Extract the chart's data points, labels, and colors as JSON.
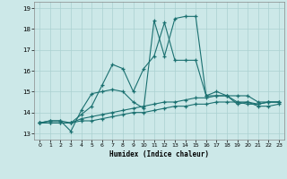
{
  "xlabel": "Humidex (Indice chaleur)",
  "xlim": [
    -0.5,
    23.5
  ],
  "ylim": [
    12.7,
    19.3
  ],
  "yticks": [
    13,
    14,
    15,
    16,
    17,
    18,
    19
  ],
  "xticks": [
    0,
    1,
    2,
    3,
    4,
    5,
    6,
    7,
    8,
    9,
    10,
    11,
    12,
    13,
    14,
    15,
    16,
    17,
    18,
    19,
    20,
    21,
    22,
    23
  ],
  "bg_color": "#cce8e8",
  "grid_color": "#aad0d0",
  "line_color": "#1a7070",
  "lines": [
    [
      13.5,
      13.6,
      13.6,
      13.1,
      14.1,
      14.9,
      15.0,
      15.1,
      15.0,
      14.5,
      14.2,
      18.4,
      16.7,
      18.5,
      18.6,
      18.6,
      14.8,
      15.0,
      14.8,
      14.4,
      14.5,
      14.4,
      14.5,
      14.5
    ],
    [
      13.5,
      13.6,
      13.6,
      13.5,
      13.9,
      14.3,
      15.3,
      16.3,
      16.1,
      15.0,
      16.1,
      16.7,
      18.3,
      16.5,
      16.5,
      16.5,
      14.8,
      14.8,
      14.8,
      14.5,
      14.4,
      14.4,
      14.5,
      14.5
    ],
    [
      13.5,
      13.5,
      13.5,
      13.5,
      13.7,
      13.8,
      13.9,
      14.0,
      14.1,
      14.2,
      14.3,
      14.4,
      14.5,
      14.5,
      14.6,
      14.7,
      14.7,
      14.8,
      14.8,
      14.8,
      14.8,
      14.5,
      14.5,
      14.5
    ],
    [
      13.5,
      13.5,
      13.5,
      13.5,
      13.6,
      13.6,
      13.7,
      13.8,
      13.9,
      14.0,
      14.0,
      14.1,
      14.2,
      14.3,
      14.3,
      14.4,
      14.4,
      14.5,
      14.5,
      14.5,
      14.5,
      14.3,
      14.3,
      14.4
    ]
  ]
}
